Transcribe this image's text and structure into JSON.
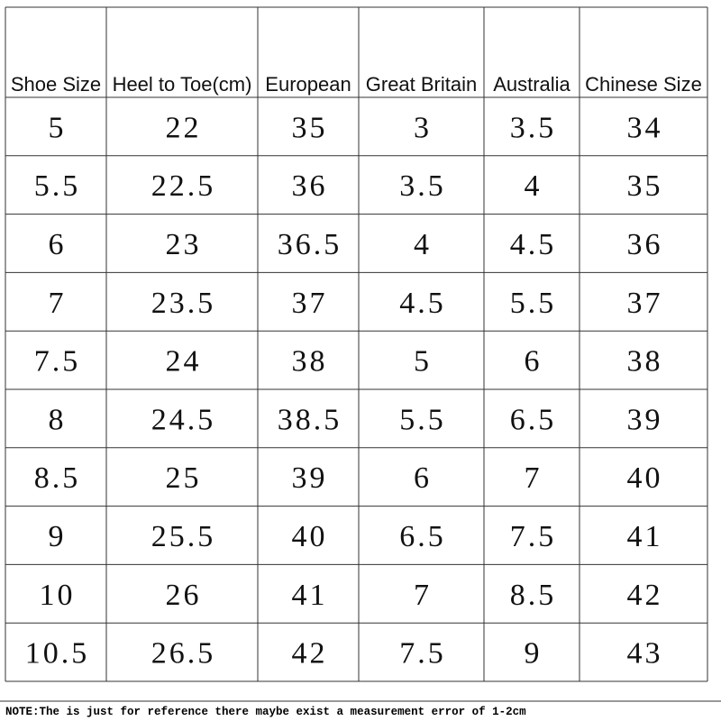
{
  "table": {
    "header": [
      "Shoe Size",
      "Heel to Toe(cm)",
      "European",
      "Great Britain",
      "Australia",
      "Chinese Size"
    ],
    "rows": [
      [
        "5",
        "22",
        "35",
        "3",
        "3.5",
        "34"
      ],
      [
        "5.5",
        "22.5",
        "36",
        "3.5",
        "4",
        "35"
      ],
      [
        "6",
        "23",
        "36.5",
        "4",
        "4.5",
        "36"
      ],
      [
        "7",
        "23.5",
        "37",
        "4.5",
        "5.5",
        "37"
      ],
      [
        "7.5",
        "24",
        "38",
        "5",
        "6",
        "38"
      ],
      [
        "8",
        "24.5",
        "38.5",
        "5.5",
        "6.5",
        "39"
      ],
      [
        "8.5",
        "25",
        "39",
        "6",
        "7",
        "40"
      ],
      [
        "9",
        "25.5",
        "40",
        "6.5",
        "7.5",
        "41"
      ],
      [
        "10",
        "26",
        "41",
        "7",
        "8.5",
        "42"
      ],
      [
        "10.5",
        "26.5",
        "42",
        "7.5",
        "9",
        "43"
      ]
    ]
  },
  "note": "NOTE:The is just for reference there maybe exist a measurement error of 1-2cm"
}
